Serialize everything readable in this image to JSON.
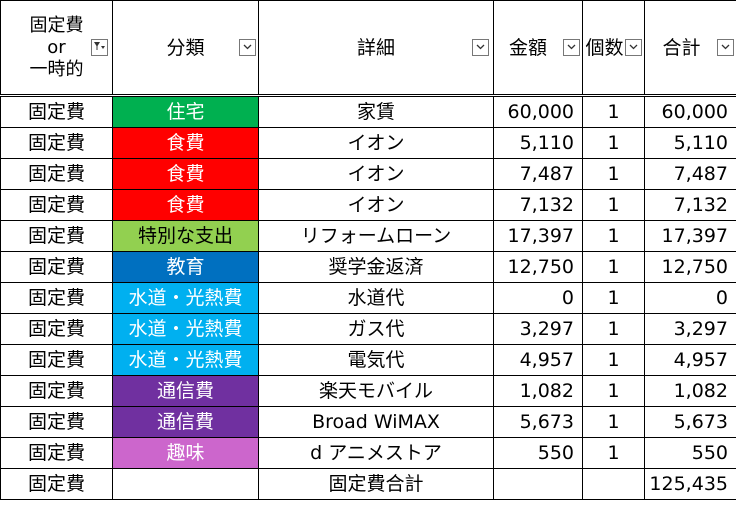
{
  "headers": {
    "col1_line1": "固定費",
    "col1_line2": "or",
    "col1_line3": "一時的",
    "bunrui": "分類",
    "shosai": "詳細",
    "kingaku": "金額",
    "kosuu": "個数",
    "goukei": "合計"
  },
  "filter_icons": {
    "col1": "filter-active-icon",
    "others": "dropdown-arrow-icon"
  },
  "category_colors": {
    "住宅": "#00B050",
    "食費": "#FF0000",
    "特別な支出": "#92D050",
    "教育": "#0070C0",
    "水道・光熱費": "#00B0F0",
    "通信費": "#7030A0",
    "趣味": "#CC66CC"
  },
  "rows": [
    {
      "type": "固定費",
      "category": "住宅",
      "category_color": "#00B050",
      "detail": "家賃",
      "amount": "60,000",
      "count": "1",
      "total": "60,000"
    },
    {
      "type": "固定費",
      "category": "食費",
      "category_color": "#FF0000",
      "detail": "イオン",
      "amount": "5,110",
      "count": "1",
      "total": "5,110"
    },
    {
      "type": "固定費",
      "category": "食費",
      "category_color": "#FF0000",
      "detail": "イオン",
      "amount": "7,487",
      "count": "1",
      "total": "7,487"
    },
    {
      "type": "固定費",
      "category": "食費",
      "category_color": "#FF0000",
      "detail": "イオン",
      "amount": "7,132",
      "count": "1",
      "total": "7,132"
    },
    {
      "type": "固定費",
      "category": "特別な支出",
      "category_color": "#92D050",
      "detail": "リフォームローン",
      "amount": "17,397",
      "count": "1",
      "total": "17,397"
    },
    {
      "type": "固定費",
      "category": "教育",
      "category_color": "#0070C0",
      "detail": "奨学金返済",
      "amount": "12,750",
      "count": "1",
      "total": "12,750"
    },
    {
      "type": "固定費",
      "category": "水道・光熱費",
      "category_color": "#00B0F0",
      "detail": "水道代",
      "amount": "0",
      "count": "1",
      "total": "0"
    },
    {
      "type": "固定費",
      "category": "水道・光熱費",
      "category_color": "#00B0F0",
      "detail": "ガス代",
      "amount": "3,297",
      "count": "1",
      "total": "3,297"
    },
    {
      "type": "固定費",
      "category": "水道・光熱費",
      "category_color": "#00B0F0",
      "detail": "電気代",
      "amount": "4,957",
      "count": "1",
      "total": "4,957"
    },
    {
      "type": "固定費",
      "category": "通信費",
      "category_color": "#7030A0",
      "detail": "楽天モバイル",
      "amount": "1,082",
      "count": "1",
      "total": "1,082"
    },
    {
      "type": "固定費",
      "category": "通信費",
      "category_color": "#7030A0",
      "detail": "Broad WiMAX",
      "amount": "5,673",
      "count": "1",
      "total": "5,673"
    },
    {
      "type": "固定費",
      "category": "趣味",
      "category_color": "#CC66CC",
      "detail": "d アニメストア",
      "amount": "550",
      "count": "1",
      "total": "550"
    }
  ],
  "summary": {
    "type": "固定費",
    "label": "固定費合計",
    "total": "125,435"
  }
}
